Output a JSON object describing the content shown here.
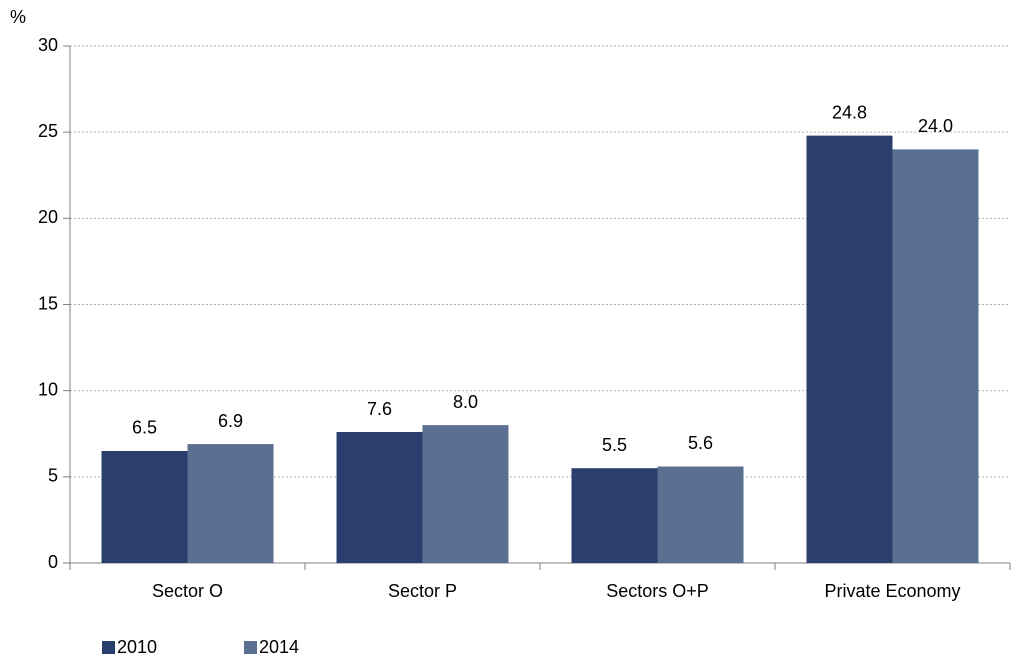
{
  "chart_data": {
    "type": "bar",
    "y_label": "%",
    "categories": [
      "Sector O",
      "Sector P",
      "Sectors O+P",
      "Private Economy"
    ],
    "series": [
      {
        "name": "2010",
        "color": "#2b3f6e",
        "values": [
          6.5,
          7.6,
          5.5,
          24.8
        ],
        "value_labels": [
          "6.5",
          "7.6",
          "5.5",
          "24.8"
        ]
      },
      {
        "name": "2014",
        "color": "#5b6f91",
        "values": [
          6.9,
          8.0,
          5.6,
          24.0
        ],
        "value_labels": [
          "6.9",
          "8.0",
          "5.6",
          "24.0"
        ]
      }
    ],
    "ylim": [
      0,
      30
    ],
    "yticks": [
      0,
      5,
      10,
      15,
      20,
      25,
      30
    ],
    "grid": true,
    "legend": "bottom-left"
  }
}
